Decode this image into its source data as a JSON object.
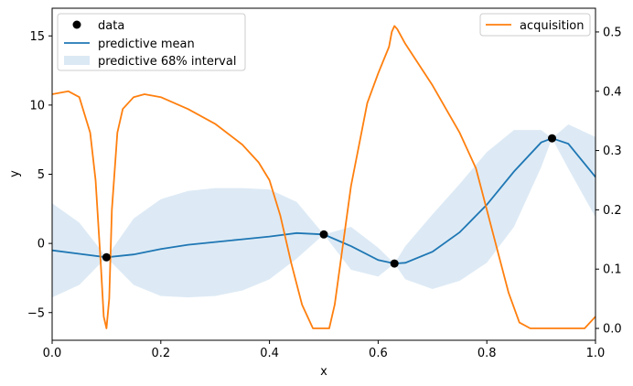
{
  "chart_data": {
    "type": "line",
    "title": "",
    "xlabel": "x",
    "ylabel": "y",
    "xlim": [
      0,
      1
    ],
    "ylim": [
      -7,
      17
    ],
    "y2lim": [
      -0.02,
      0.54
    ],
    "xticks": [
      "0.0",
      "0.2",
      "0.4",
      "0.6",
      "0.8",
      "1.0"
    ],
    "yticks": [
      "-5",
      "0",
      "5",
      "10",
      "15"
    ],
    "y2ticks": [
      "0.0",
      "0.1",
      "0.2",
      "0.3",
      "0.4",
      "0.5"
    ],
    "grid": false,
    "legend_left": {
      "placement": "top-left",
      "entries": [
        "data",
        "predictive mean",
        "predictive 68% interval"
      ]
    },
    "legend_right": {
      "placement": "top-right",
      "entries": [
        "acquisition"
      ]
    },
    "colors": {
      "mean": "#1f77b4",
      "band": "#a6c8e6",
      "acquisition": "#ff7f0e",
      "points": "#000000"
    },
    "observations": {
      "name": "data",
      "x": [
        0.1,
        0.5,
        0.63,
        0.92
      ],
      "y": [
        -1.0,
        0.65,
        -1.45,
        7.6
      ]
    },
    "mean": {
      "name": "predictive mean",
      "x": [
        0.0,
        0.05,
        0.1,
        0.15,
        0.2,
        0.25,
        0.3,
        0.35,
        0.4,
        0.45,
        0.5,
        0.55,
        0.6,
        0.63,
        0.65,
        0.7,
        0.75,
        0.8,
        0.85,
        0.9,
        0.92,
        0.95,
        1.0
      ],
      "y": [
        -0.5,
        -0.75,
        -1.0,
        -0.8,
        -0.4,
        -0.1,
        0.1,
        0.3,
        0.5,
        0.75,
        0.65,
        -0.2,
        -1.2,
        -1.45,
        -1.4,
        -0.6,
        0.8,
        2.8,
        5.2,
        7.3,
        7.6,
        7.2,
        4.8
      ]
    },
    "interval": {
      "name": "predictive 68% interval",
      "x": [
        0.0,
        0.05,
        0.1,
        0.15,
        0.2,
        0.25,
        0.3,
        0.35,
        0.4,
        0.45,
        0.5,
        0.55,
        0.6,
        0.63,
        0.65,
        0.7,
        0.75,
        0.8,
        0.85,
        0.9,
        0.92,
        0.95,
        1.0
      ],
      "lower": [
        -3.9,
        -3.0,
        -1.0,
        -3.0,
        -3.8,
        -3.9,
        -3.8,
        -3.4,
        -2.6,
        -1.1,
        0.65,
        -1.9,
        -2.4,
        -1.45,
        -2.6,
        -3.3,
        -2.7,
        -1.4,
        1.2,
        5.5,
        7.6,
        5.4,
        1.9
      ],
      "upper": [
        2.9,
        1.5,
        -1.0,
        1.8,
        3.2,
        3.8,
        4.0,
        4.0,
        3.9,
        3.0,
        0.65,
        1.2,
        -0.3,
        -1.45,
        -0.2,
        2.1,
        4.3,
        6.6,
        8.2,
        8.2,
        7.6,
        8.6,
        7.7
      ]
    },
    "acquisition": {
      "name": "acquisition",
      "x": [
        0.0,
        0.03,
        0.05,
        0.07,
        0.08,
        0.09,
        0.095,
        0.1,
        0.105,
        0.11,
        0.12,
        0.13,
        0.15,
        0.17,
        0.2,
        0.25,
        0.3,
        0.35,
        0.38,
        0.4,
        0.42,
        0.44,
        0.46,
        0.48,
        0.5,
        0.51,
        0.52,
        0.55,
        0.58,
        0.6,
        0.62,
        0.625,
        0.63,
        0.635,
        0.65,
        0.7,
        0.75,
        0.78,
        0.8,
        0.82,
        0.84,
        0.86,
        0.88,
        0.9,
        0.92,
        0.94,
        0.96,
        0.98,
        1.0
      ],
      "y": [
        0.395,
        0.4,
        0.39,
        0.33,
        0.25,
        0.1,
        0.02,
        0.0,
        0.05,
        0.2,
        0.33,
        0.37,
        0.39,
        0.395,
        0.39,
        0.37,
        0.345,
        0.31,
        0.28,
        0.25,
        0.19,
        0.11,
        0.04,
        0.0,
        0.0,
        0.0,
        0.04,
        0.24,
        0.38,
        0.43,
        0.475,
        0.5,
        0.51,
        0.505,
        0.48,
        0.41,
        0.33,
        0.27,
        0.2,
        0.13,
        0.06,
        0.01,
        0.0,
        0.0,
        0.0,
        0.0,
        0.0,
        0.0,
        0.02
      ]
    }
  }
}
